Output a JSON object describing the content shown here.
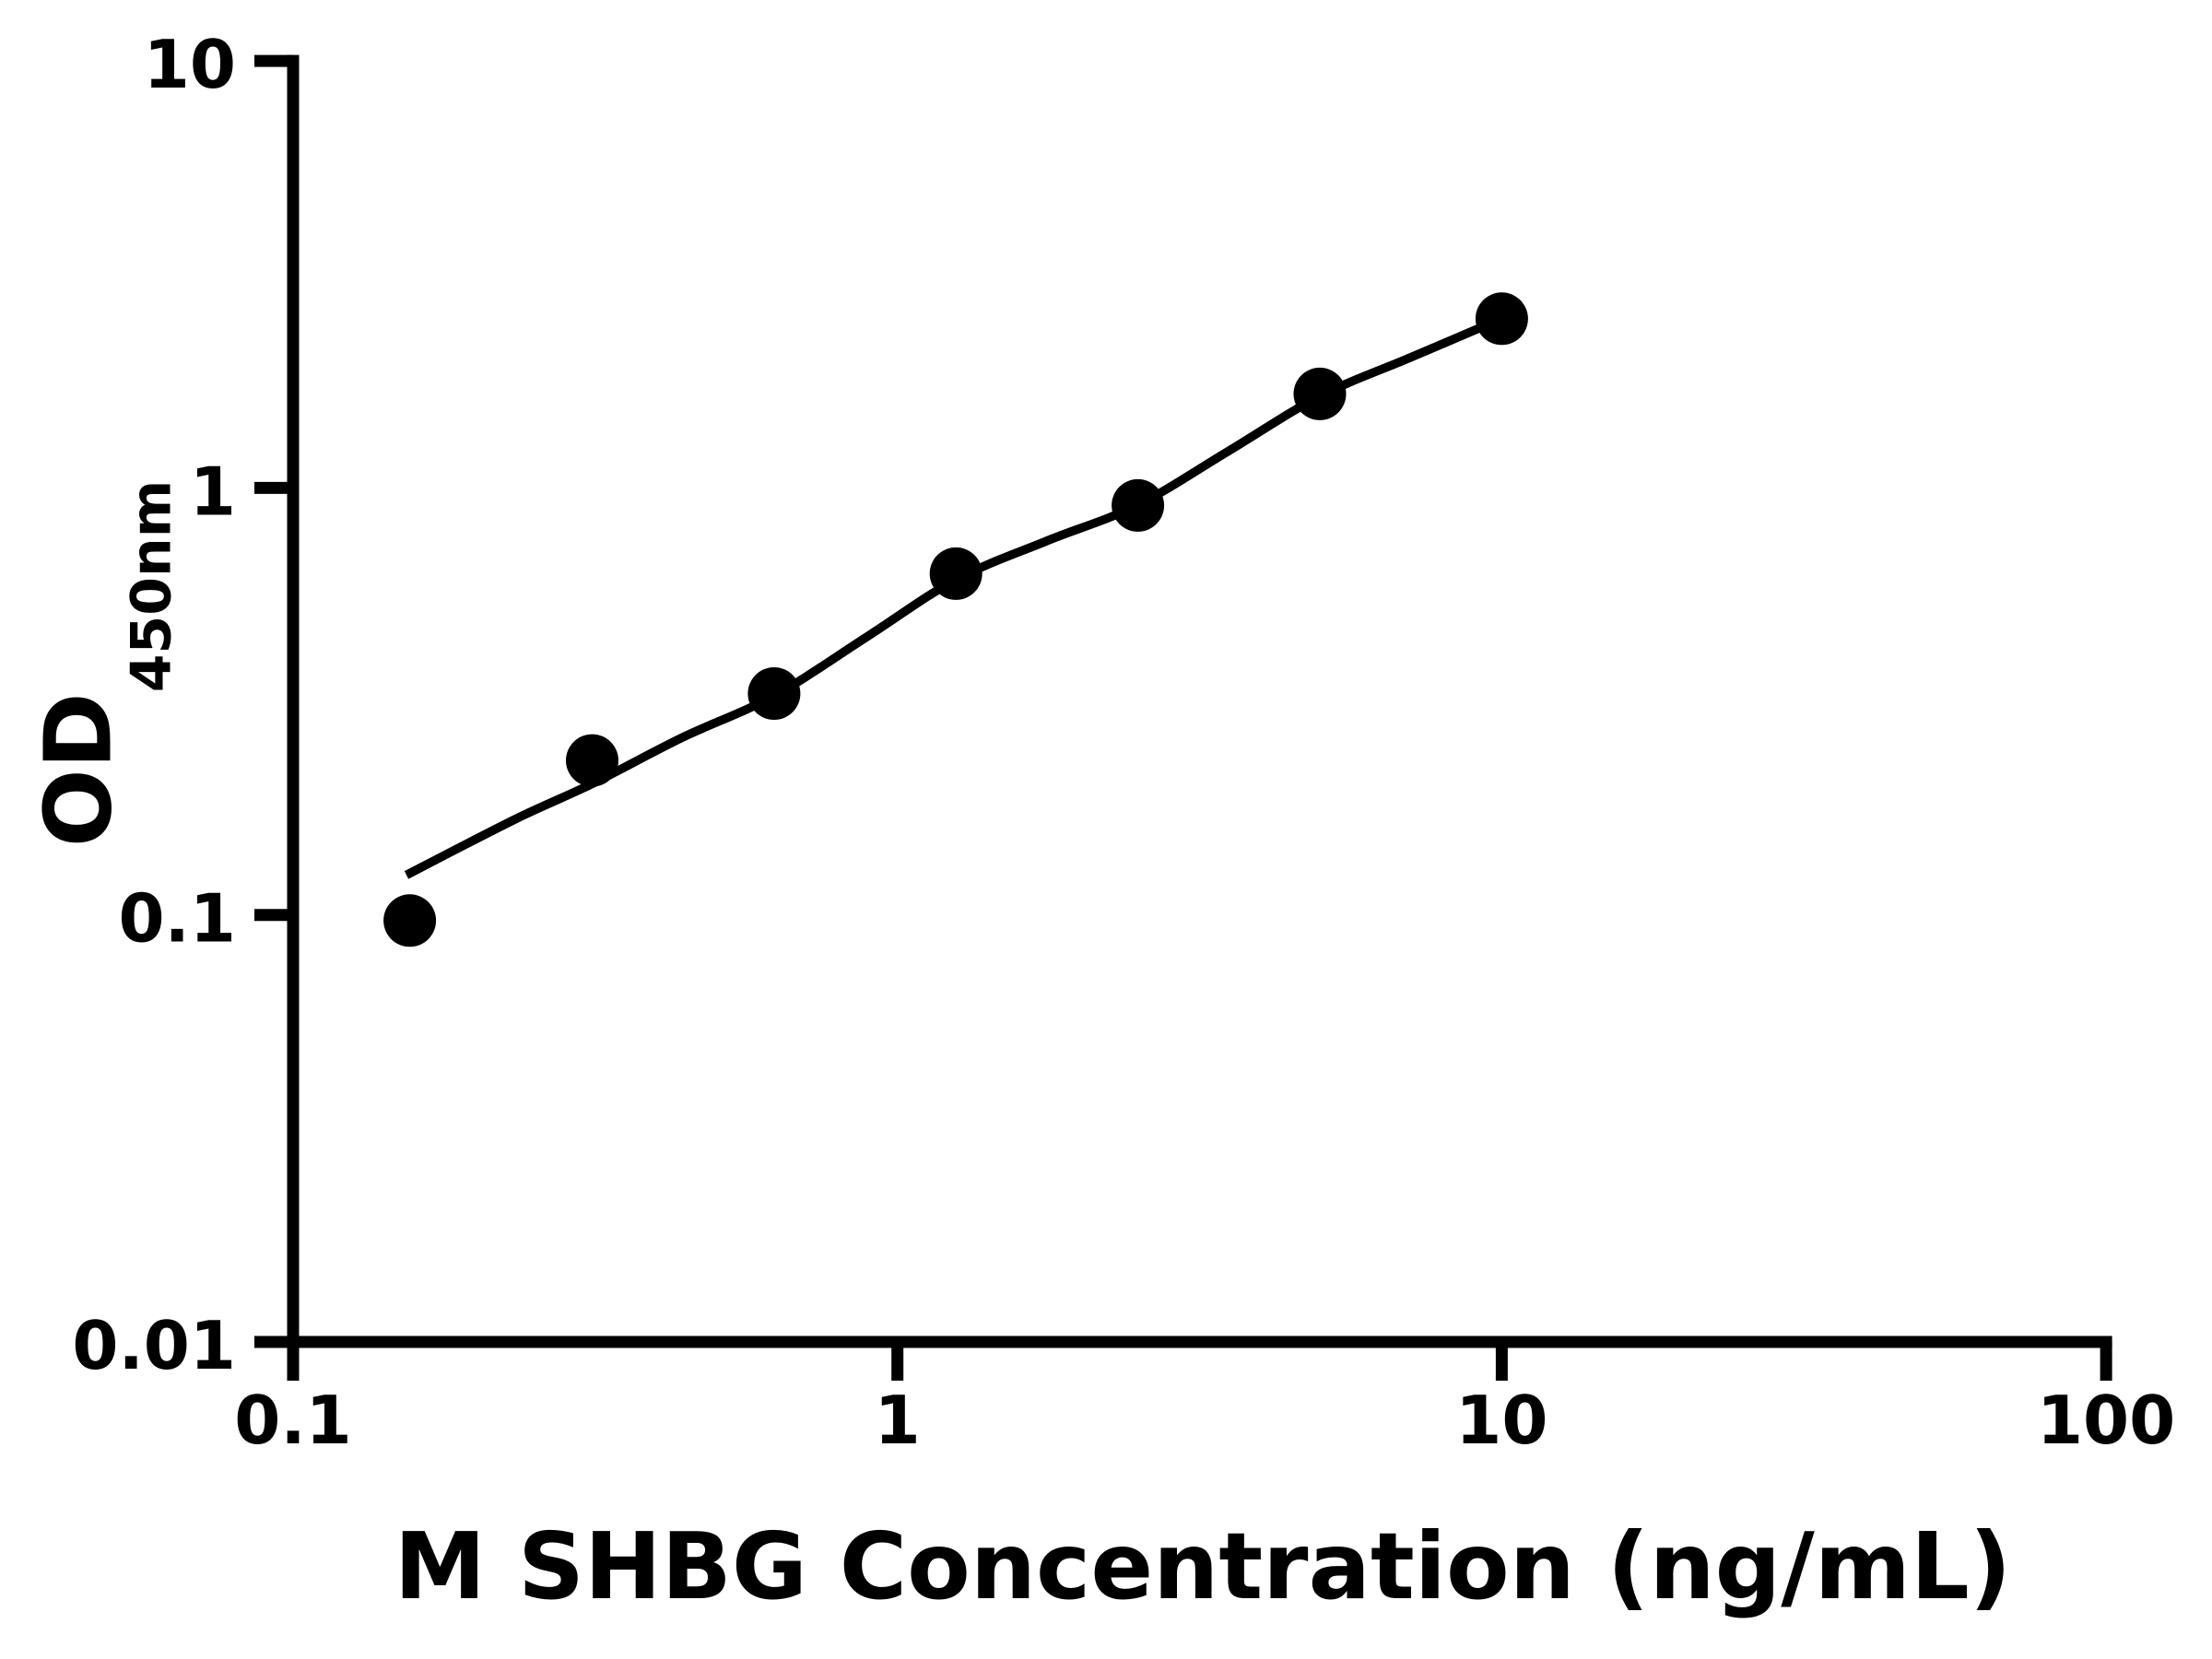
{
  "figure": {
    "background": "#ffffff",
    "ink": "#000000"
  },
  "chart_data": {
    "type": "scatter",
    "title": "",
    "xlabel": "M SHBG Concentration (ng/mL)",
    "ylabel_main": "OD",
    "ylabel_sub": "450nm",
    "x_scale": "log",
    "y_scale": "log",
    "xlim": [
      0.1,
      100
    ],
    "ylim": [
      0.01,
      10
    ],
    "x_ticks": [
      0.1,
      1,
      10,
      100
    ],
    "x_tick_labels": [
      "0.1",
      "1",
      "10",
      "100"
    ],
    "y_ticks": [
      0.01,
      0.1,
      1,
      10
    ],
    "y_tick_labels": [
      "0.01",
      "0.1",
      "1",
      "10"
    ],
    "grid": false,
    "legend": null,
    "series": [
      {
        "name": "standard-points",
        "type": "scatter",
        "marker": "circle-filled",
        "color": "#000000",
        "points": [
          {
            "x": 0.156,
            "y": 0.097
          },
          {
            "x": 0.3125,
            "y": 0.23
          },
          {
            "x": 0.625,
            "y": 0.33
          },
          {
            "x": 1.25,
            "y": 0.63
          },
          {
            "x": 2.5,
            "y": 0.91
          },
          {
            "x": 5,
            "y": 1.66
          },
          {
            "x": 10,
            "y": 2.49
          }
        ]
      },
      {
        "name": "fit-curve",
        "type": "line",
        "color": "#000000",
        "points": [
          {
            "x": 0.154,
            "y": 0.124
          },
          {
            "x": 0.234,
            "y": 0.168
          },
          {
            "x": 0.313,
            "y": 0.203
          },
          {
            "x": 0.44,
            "y": 0.26
          },
          {
            "x": 0.625,
            "y": 0.326
          },
          {
            "x": 0.89,
            "y": 0.448
          },
          {
            "x": 1.25,
            "y": 0.61
          },
          {
            "x": 1.76,
            "y": 0.75
          },
          {
            "x": 2.49,
            "y": 0.91
          },
          {
            "x": 3.53,
            "y": 1.22
          },
          {
            "x": 5.0,
            "y": 1.64
          },
          {
            "x": 7.06,
            "y": 2.02
          },
          {
            "x": 9.99,
            "y": 2.49
          }
        ]
      }
    ]
  }
}
